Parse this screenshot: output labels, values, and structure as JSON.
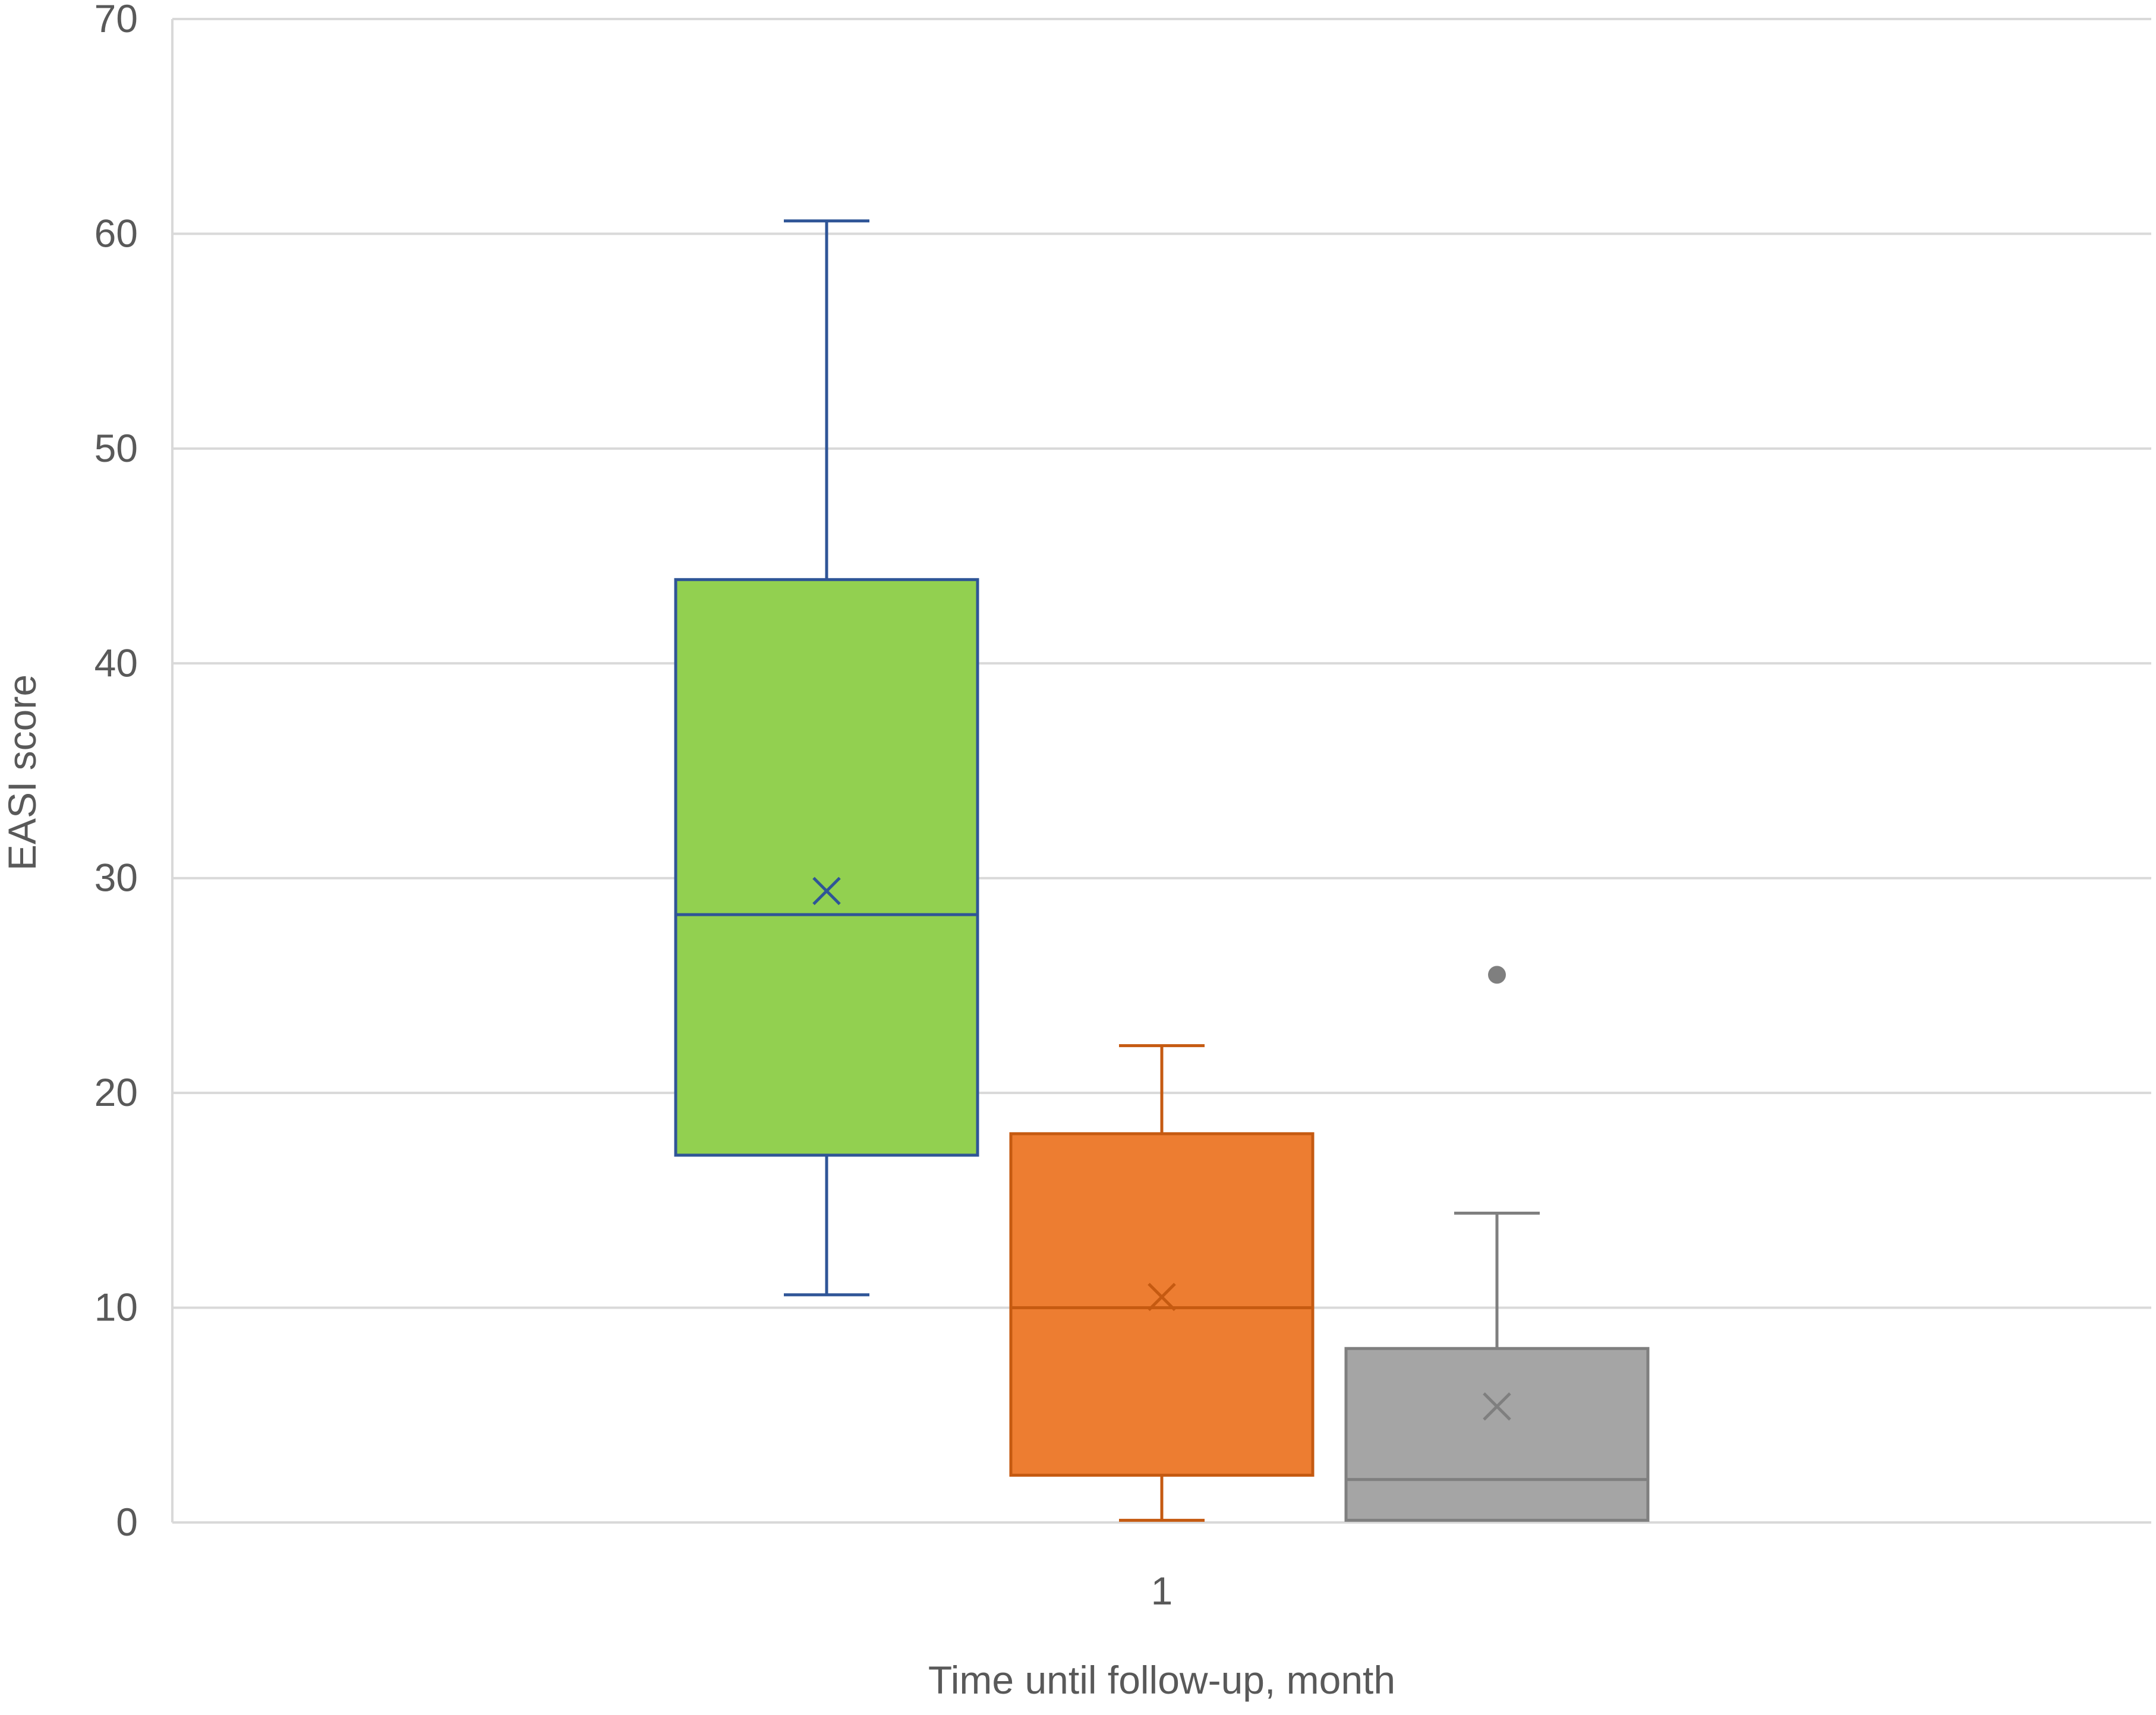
{
  "chart_data": {
    "type": "box",
    "title": "",
    "xlabel": "Time until follow-up, month",
    "ylabel": "EASI score",
    "categories": [
      "1"
    ],
    "ylim": [
      0,
      70
    ],
    "yticks": [
      0,
      10,
      20,
      30,
      40,
      50,
      60,
      70
    ],
    "grid": true,
    "legend": "none",
    "series": [
      {
        "whisker_low": 10.6,
        "q1": 17.1,
        "median": 28.3,
        "q3": 43.9,
        "whisker_high": 60.6,
        "mean": 29.4,
        "outliers": [],
        "fill": "#92d050",
        "line": "#2f5597"
      },
      {
        "whisker_low": 0.1,
        "q1": 2.2,
        "median": 10.0,
        "q3": 18.1,
        "whisker_high": 22.2,
        "mean": 10.5,
        "outliers": [],
        "fill": "#ed7d31",
        "line": "#c55a11"
      },
      {
        "whisker_low": 0.1,
        "q1": 0.1,
        "median": 2.0,
        "q3": 8.1,
        "whisker_high": 14.4,
        "mean": 5.4,
        "outliers": [
          25.5
        ],
        "fill": "#a5a5a5",
        "line": "#7f7f7f"
      }
    ],
    "colors": {
      "grid": "#d9d9d9",
      "axis_text": "#595959"
    }
  }
}
